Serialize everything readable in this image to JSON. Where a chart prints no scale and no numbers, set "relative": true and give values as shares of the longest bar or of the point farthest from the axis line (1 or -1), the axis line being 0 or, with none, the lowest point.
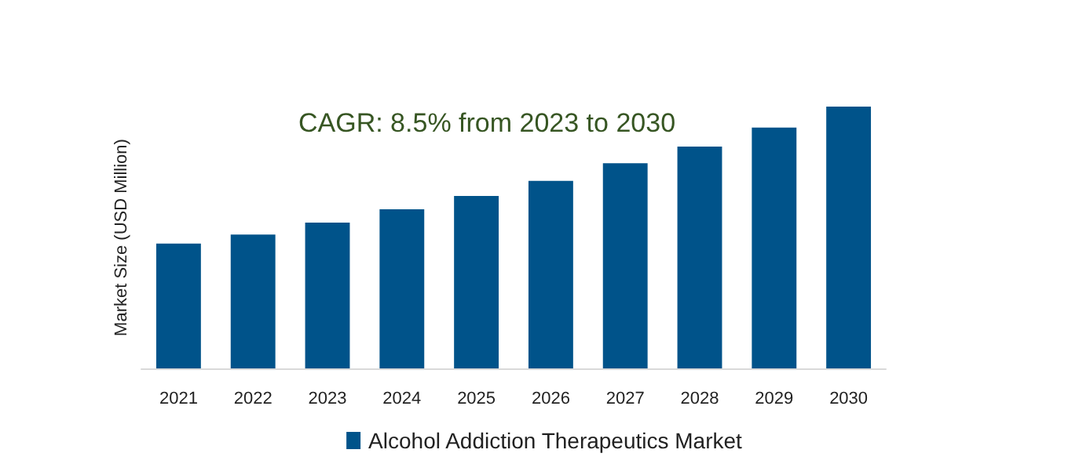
{
  "chart_data": {
    "type": "bar",
    "relative": true,
    "ylabel": "Market Size (USD Million)",
    "annotations": [
      "CAGR: 8.5% from 2023 to 2030"
    ],
    "categories": [
      "2021",
      "2022",
      "2023",
      "2024",
      "2025",
      "2026",
      "2027",
      "2028",
      "2029",
      "2030"
    ],
    "series": [
      {
        "name": "Alcohol Addiction Therapeutics Market",
        "color": "#00538a",
        "values": [
          0.477,
          0.511,
          0.557,
          0.608,
          0.659,
          0.716,
          0.784,
          0.847,
          0.92,
          1
        ]
      }
    ],
    "legend": "bottom"
  }
}
